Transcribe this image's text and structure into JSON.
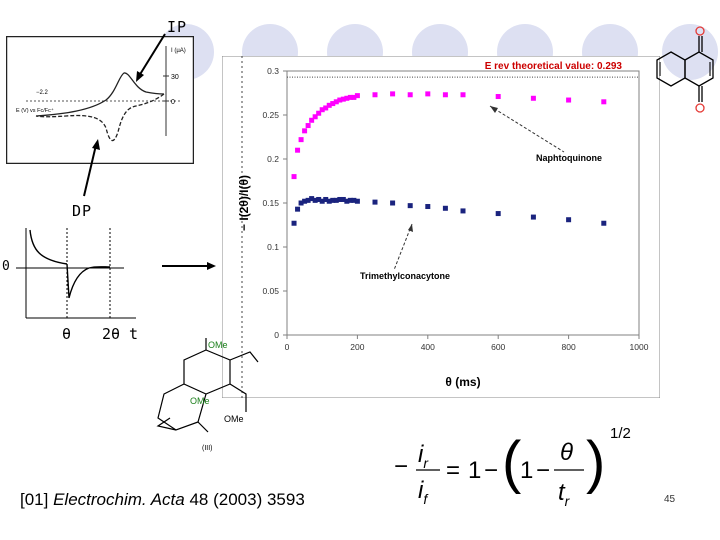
{
  "labels": {
    "ip": "IP",
    "dp": "DP",
    "zero": "0",
    "theta": "θ",
    "two_theta": "2θ",
    "t": "t"
  },
  "cv_panel": {
    "y_unit": "I (µA)",
    "y_ticks": [
      "30",
      "0"
    ],
    "x_tick": "−2.2",
    "x_label": "E (V) vs Fc/Fc⁺"
  },
  "molecule": {
    "ome_top": "OMe",
    "ome_mid": "OMe",
    "ome_bot": "OMe",
    "compound_label": "(III)"
  },
  "formula": {
    "lhs_num": "i",
    "lhs_num_sub": "r",
    "lhs_den": "i",
    "lhs_den_sub": "f",
    "eq_one": "1",
    "inner_one": "1",
    "frac_num": "θ",
    "frac_den": "t",
    "frac_den_sub": "r",
    "exponent": "1/2"
  },
  "citation": {
    "ref": "[01]",
    "journal": "Electrochim. Acta",
    "details": "48 (2003) 3593"
  },
  "slide_number": "45",
  "colors": {
    "naphtho": "#ff00ff",
    "trimethyl": "#1a237e",
    "title": "#cc0000",
    "circle": "#dde0f2"
  },
  "chart_data": {
    "type": "scatter",
    "title": "E rev theoretical value: 0.293",
    "xlabel": "θ (ms)",
    "ylabel": "− I(2θ)/I(θ)",
    "xlim": [
      0,
      1000
    ],
    "ylim": [
      0,
      0.3
    ],
    "x_ticks": [
      0,
      200,
      400,
      600,
      800,
      1000
    ],
    "y_ticks": [
      0,
      0.05,
      0.1,
      0.15,
      0.2,
      0.25,
      0.3
    ],
    "x_tick_labels": [
      "0",
      "200",
      "400",
      "600",
      "800",
      "1000"
    ],
    "y_tick_labels": [
      "0",
      "0.05",
      "0.1",
      "0.15",
      "0.2",
      "0.25",
      "0.3"
    ],
    "reference_line": 0.293,
    "annotations": [
      "Naphtoquinone",
      "Trimethylconacytone"
    ],
    "series": [
      {
        "name": "Naphtoquinone",
        "x": [
          20,
          30,
          40,
          50,
          60,
          70,
          80,
          90,
          100,
          110,
          120,
          130,
          140,
          150,
          160,
          170,
          180,
          190,
          200,
          250,
          300,
          350,
          400,
          450,
          500,
          600,
          700,
          800,
          900
        ],
        "y": [
          0.18,
          0.21,
          0.222,
          0.232,
          0.238,
          0.244,
          0.248,
          0.252,
          0.256,
          0.258,
          0.261,
          0.263,
          0.265,
          0.267,
          0.268,
          0.269,
          0.27,
          0.27,
          0.272,
          0.273,
          0.274,
          0.273,
          0.274,
          0.273,
          0.273,
          0.271,
          0.269,
          0.267,
          0.265
        ]
      },
      {
        "name": "Trimethylconacytone",
        "x": [
          20,
          30,
          40,
          50,
          60,
          70,
          80,
          90,
          100,
          110,
          120,
          130,
          140,
          150,
          160,
          170,
          180,
          190,
          200,
          250,
          300,
          350,
          400,
          450,
          500,
          600,
          700,
          800,
          900
        ],
        "y": [
          0.127,
          0.143,
          0.15,
          0.152,
          0.153,
          0.155,
          0.153,
          0.154,
          0.152,
          0.154,
          0.152,
          0.153,
          0.153,
          0.154,
          0.154,
          0.152,
          0.153,
          0.153,
          0.152,
          0.151,
          0.15,
          0.147,
          0.146,
          0.144,
          0.141,
          0.138,
          0.134,
          0.131,
          0.127
        ]
      }
    ]
  }
}
